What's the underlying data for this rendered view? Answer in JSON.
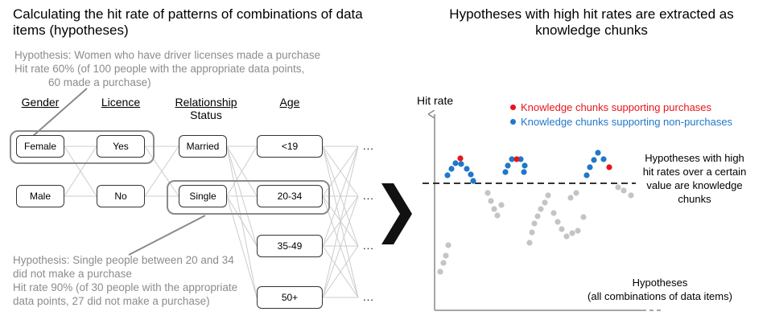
{
  "left": {
    "title_line1": "Calculating the hit rate of patterns of combinations of data",
    "title_line2": "items (hypotheses)",
    "top_hypothesis": {
      "line1": "Hypothesis: Women who have driver licenses made a purchase",
      "line2": "Hit rate 60% (of 100 people with the appropriate data points,",
      "line3": "60 made a purchase)"
    },
    "columns": {
      "gender": "Gender",
      "licence": "Licence",
      "relationship_1": "Relationship",
      "relationship_2": "Status",
      "age": "Age"
    },
    "nodes": {
      "female": "Female",
      "male": "Male",
      "yes": "Yes",
      "no": "No",
      "married": "Married",
      "single": "Single",
      "age1": "<19",
      "age2": "20-34",
      "age3": "35-49",
      "age4": "50+"
    },
    "ellipsis": "...",
    "bottom_hypothesis": {
      "line1": "Hypothesis: Single people between 20 and 34",
      "line2": "did not make a purchase",
      "line3": "Hit rate 90% (of 30 people with the appropriate",
      "line4": "data points, 27 did not make a purchase)"
    }
  },
  "right": {
    "title_line1": "Hypotheses with high hit rates are extracted as",
    "title_line2": "knowledge chunks",
    "y_axis_label": "Hit rate",
    "legend": {
      "purchase": "Knowledge chunks supporting purchases",
      "non_purchase": "Knowledge chunks supporting non-purchases"
    },
    "threshold_note": {
      "line1": "Hypotheses with high",
      "line2": "hit rates over a certain",
      "line3": "value are knowledge",
      "line4": "chunks"
    },
    "x_axis_label_1": "Hypotheses",
    "x_axis_label_2": "(all combinations of data items)"
  },
  "colors": {
    "purchase": "#e8141c",
    "non_purchase": "#1f78c8",
    "other": "#c4c4c4",
    "gray_text": "#8c8c8c"
  }
}
